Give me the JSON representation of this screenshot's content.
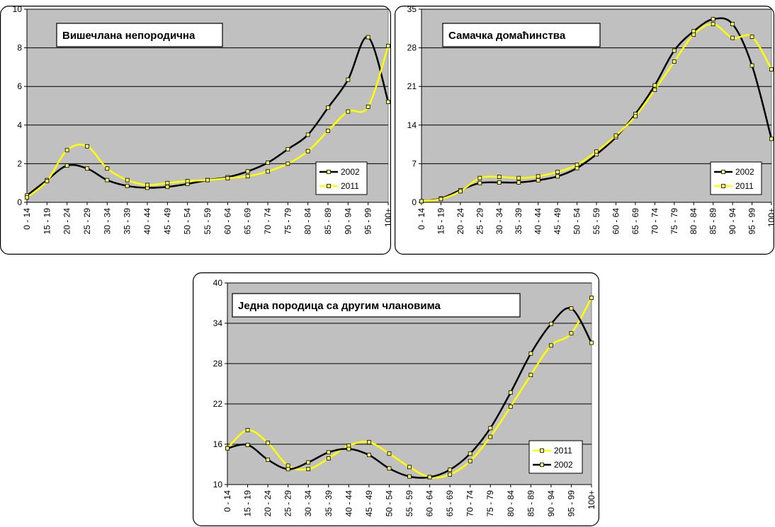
{
  "colors": {
    "plot_bg": "#c0c0c0",
    "series_2002": "#000000",
    "series_2011": "#ffff00",
    "marker": "#ffff66"
  },
  "chart_data": [
    {
      "type": "line",
      "title": "Вишечлана непородична",
      "categories": [
        "0 - 14",
        "15 - 19",
        "20 - 24",
        "25 - 29",
        "30 - 34",
        "35 - 39",
        "40 - 44",
        "45 - 49",
        "50 - 54",
        "55 - 59",
        "60 - 64",
        "65 - 69",
        "70 - 74",
        "75 - 79",
        "80 - 84",
        "85 - 89",
        "90 - 94",
        "95 - 99",
        "100+"
      ],
      "ylim": [
        0,
        10
      ],
      "yticks": [
        "0",
        "2",
        "4",
        "6",
        "8",
        "10"
      ],
      "legend_position": "right",
      "series": [
        {
          "name": "2002",
          "color": "#000000",
          "marker": "square",
          "values": [
            0.35,
            1.15,
            1.9,
            1.75,
            1.15,
            0.85,
            0.75,
            0.8,
            0.95,
            1.15,
            1.3,
            1.6,
            2.05,
            2.75,
            3.5,
            4.9,
            6.35,
            8.55,
            5.2
          ]
        },
        {
          "name": "2011",
          "color": "#ffff00",
          "marker": "square",
          "values": [
            0.25,
            1.1,
            2.7,
            2.9,
            1.75,
            1.15,
            0.9,
            1.0,
            1.1,
            1.15,
            1.25,
            1.35,
            1.6,
            2.0,
            2.65,
            3.7,
            4.7,
            4.95,
            8.1
          ]
        }
      ]
    },
    {
      "type": "line",
      "title": "Самачка домаћинства",
      "categories": [
        "0 - 14",
        "15 - 19",
        "20 - 24",
        "25 - 29",
        "30 - 34",
        "35 - 39",
        "40 - 44",
        "45 - 49",
        "50 - 54",
        "55 - 59",
        "60 - 64",
        "65 - 69",
        "70 - 74",
        "75 - 79",
        "80 - 84",
        "85 - 89",
        "90 - 94",
        "95 - 99",
        "100+"
      ],
      "ylim": [
        0,
        35
      ],
      "yticks": [
        "0",
        "7",
        "14",
        "21",
        "28",
        "35"
      ],
      "legend_position": "right",
      "series": [
        {
          "name": "2002",
          "color": "#000000",
          "marker": "square",
          "values": [
            0.2,
            0.7,
            2.2,
            3.5,
            3.6,
            3.6,
            4.0,
            4.7,
            6.2,
            8.7,
            11.8,
            16.0,
            21.2,
            27.5,
            31.0,
            33.2,
            32.3,
            24.8,
            11.5
          ]
        },
        {
          "name": "2011",
          "color": "#ffff00",
          "marker": "square",
          "values": [
            0.2,
            0.6,
            2.0,
            4.4,
            4.6,
            4.4,
            4.7,
            5.5,
            6.8,
            9.2,
            12.1,
            15.6,
            20.4,
            25.5,
            30.4,
            32.3,
            29.8,
            30.0,
            24.1
          ]
        }
      ]
    },
    {
      "type": "line",
      "title": "Једна породица са другим члановима",
      "categories": [
        "0 - 14",
        "15 - 19",
        "20 - 24",
        "25 - 29",
        "30 - 34",
        "35 - 39",
        "40 - 44",
        "45 - 49",
        "50 - 54",
        "55 - 59",
        "60 - 64",
        "65 - 69",
        "70 - 74",
        "75 - 79",
        "80 - 84",
        "85 - 89",
        "90 - 94",
        "95 - 99",
        "100+"
      ],
      "ylim": [
        10,
        40
      ],
      "yticks": [
        "10",
        "16",
        "22",
        "28",
        "34",
        "40"
      ],
      "legend_position": "right",
      "series": [
        {
          "name": "2011",
          "color": "#ffff00",
          "marker": "square",
          "values": [
            15.4,
            18.1,
            16.2,
            12.8,
            12.3,
            13.9,
            15.8,
            16.3,
            14.6,
            12.6,
            11.1,
            11.5,
            13.5,
            17.1,
            21.6,
            26.3,
            30.7,
            32.5,
            37.8
          ]
        },
        {
          "name": "2002",
          "color": "#000000",
          "marker": "square",
          "values": [
            15.4,
            15.9,
            13.7,
            12.3,
            13.3,
            14.8,
            15.3,
            14.4,
            12.4,
            11.2,
            11.1,
            12.2,
            14.6,
            18.4,
            23.7,
            29.5,
            33.9,
            36.2,
            31.1
          ]
        }
      ]
    }
  ]
}
